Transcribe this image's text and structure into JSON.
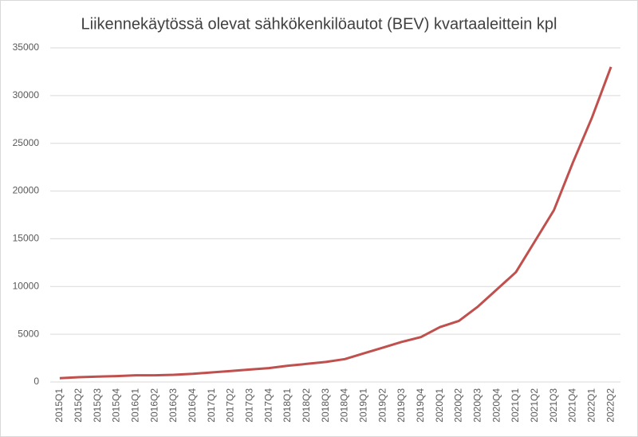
{
  "chart_data": {
    "type": "line",
    "title": "Liikennekäytössä olevat sähkökenkilöautot (BEV) kvartaaleittein kpl",
    "categories": [
      "2015Q1",
      "2015Q2",
      "2015Q3",
      "2015Q4",
      "2016Q1",
      "2016Q2",
      "2016Q3",
      "2016Q4",
      "2017Q1",
      "2017Q2",
      "2017Q3",
      "2017Q4",
      "2018Q1",
      "2018Q2",
      "2018Q3",
      "2018Q4",
      "2019Q1",
      "2019Q2",
      "2019Q3",
      "2019Q4",
      "2020Q1",
      "2020Q2",
      "2020Q3",
      "2020Q4",
      "2021Q1",
      "2021Q2",
      "2021Q3",
      "2021Q4",
      "2022Q1",
      "2022Q2"
    ],
    "series": [
      {
        "name": "BEV",
        "color": "#c0504d",
        "values": [
          400,
          500,
          560,
          620,
          700,
          700,
          750,
          850,
          1000,
          1150,
          1300,
          1450,
          1700,
          1900,
          2100,
          2400,
          3000,
          3600,
          4200,
          4700,
          5750,
          6400,
          7900,
          9700,
          11500,
          14750,
          18000,
          23000,
          27700,
          33000
        ]
      }
    ],
    "ylim": [
      0,
      35000
    ],
    "yticks": [
      0,
      5000,
      10000,
      15000,
      20000,
      25000,
      30000,
      35000
    ],
    "grid": true
  }
}
